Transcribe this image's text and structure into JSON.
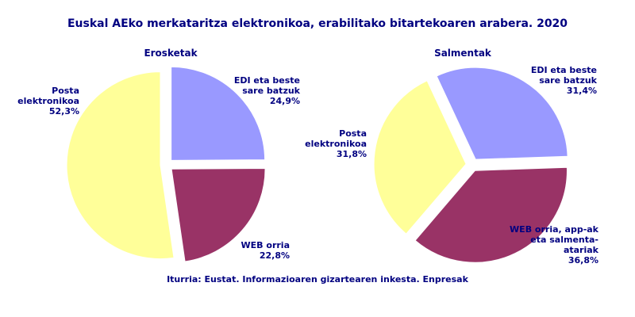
{
  "title": "Euskal AEko merkataritza elektronikoa, erabilitako bitartekoaren arabera. 2020",
  "source": "Iturria: Eustat. Informazioaren gizartearen inkesta. Enpresak",
  "chart_data": [
    {
      "type": "pie",
      "title": "Erosketak",
      "categories": [
        "EDI eta beste sare batzuk",
        "WEB orria",
        "Posta elektronikoa"
      ],
      "values": [
        24.9,
        22.8,
        52.3
      ],
      "value_labels": [
        "24,9%",
        "22,8%",
        "52,3%"
      ],
      "colors": [
        "#9999ff",
        "#993366",
        "#ffff99"
      ]
    },
    {
      "type": "pie",
      "title": "Salmentak",
      "categories": [
        "EDI eta beste sare batzuk",
        "WEB orria, app-ak eta salmenta-atariak",
        "Posta elektronikoa"
      ],
      "values": [
        31.4,
        36.8,
        31.8
      ],
      "value_labels": [
        "31,4%",
        "36,8%",
        "31,8%"
      ],
      "colors": [
        "#9999ff",
        "#993366",
        "#ffff99"
      ]
    }
  ]
}
